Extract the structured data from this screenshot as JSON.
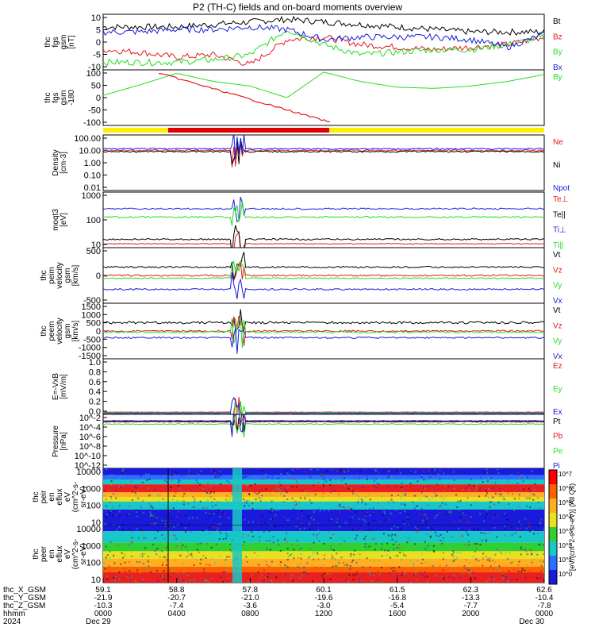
{
  "title": "P2 (TH-C) fields and on-board moments overview",
  "colors": {
    "black": "#000000",
    "red": "#e41a1c",
    "green": "#22dd22",
    "blue": "#1a1adc",
    "yellow": "#ffee00",
    "barred": "#e00000"
  },
  "colorbar_label": "[eV/(cm^2-s-sr-eV)] (All Qs)",
  "colorbar_ticks": [
    "10^7",
    "10^6",
    "10^5",
    "10^4",
    "10^3",
    "10^2",
    "10^1",
    "10^0"
  ],
  "x_labels": {
    "rows": [
      {
        "name": "thc_X_GSM",
        "values": [
          "59.1",
          "58.8",
          "57.8",
          "60.1",
          "61.5",
          "62.3",
          "62.6"
        ]
      },
      {
        "name": "thc_Y_GSM",
        "values": [
          "-21.9",
          "-20.7",
          "-21.0",
          "-19.6",
          "-16.8",
          "-13.3",
          "-10.4"
        ]
      },
      {
        "name": "thc_Z_GSM",
        "values": [
          "-10.3",
          "-7.4",
          "-3.6",
          "-3.0",
          "-5.4",
          "-7.7",
          "-7.8"
        ]
      },
      {
        "name": "hhmm",
        "values": [
          "0000",
          "0400",
          "0800",
          "1200",
          "1600",
          "2000",
          "0000"
        ]
      },
      {
        "name": "2024",
        "values": [
          "Dec 29",
          "",
          "",
          "",
          "",
          "",
          "Dec 30"
        ]
      }
    ]
  },
  "chart_data": [
    {
      "type": "line",
      "ylabel_lines": [
        "thc",
        "fgs",
        "gsm",
        "[nT]"
      ],
      "yticks": [
        "10",
        "5",
        "0",
        "-5",
        "-10"
      ],
      "ylim": [
        -10,
        12
      ],
      "series": [
        {
          "name": "Bt",
          "color": "black",
          "values": [
            7,
            7,
            7,
            8,
            9,
            10,
            9,
            8,
            7,
            6,
            5,
            5,
            5
          ]
        },
        {
          "name": "Bz",
          "color": "red",
          "values": [
            -2,
            -3,
            -5,
            -4,
            -8,
            2,
            3,
            0,
            -1,
            -2,
            -1,
            0,
            3
          ]
        },
        {
          "name": "By",
          "color": "green",
          "values": [
            -7,
            -7,
            -7,
            -6,
            -4,
            6,
            0,
            -4,
            -3,
            -2,
            -2,
            0,
            3
          ]
        },
        {
          "name": "Bx",
          "color": "blue",
          "values": [
            5,
            5,
            6,
            6,
            7,
            6,
            2,
            3,
            3,
            3,
            2,
            -1,
            4
          ]
        }
      ]
    },
    {
      "type": "line",
      "ylabel_lines": [
        "thc",
        "fgs",
        "gsm",
        "-180"
      ],
      "ylabel2": "[nT]",
      "yticks": [
        "100",
        "50",
        "0",
        "-50",
        "-100"
      ],
      "ylim": [
        -130,
        110
      ],
      "series": [
        {
          "name": "By",
          "color": "green",
          "values": [
            0,
            45,
            95,
            60,
            40,
            -10,
            100,
            60,
            35,
            30,
            40,
            60,
            90
          ]
        }
      ]
    },
    {
      "type": "line",
      "ylabel_lines": [
        "Density",
        "[cm-3]"
      ],
      "yticks": [
        "100.00",
        "10.00",
        "1.00",
        "0.10",
        "0.01"
      ],
      "series": [
        {
          "name": "Ne",
          "color": "red"
        },
        {
          "name": "Ni",
          "color": "black"
        },
        {
          "name": "Npot",
          "color": "blue"
        }
      ]
    },
    {
      "type": "line",
      "ylabel_lines": [
        "moqt3",
        "[eV]"
      ],
      "yticks": [
        "1000",
        "100",
        "10"
      ],
      "series": [
        {
          "name": "Te⊥",
          "color": "red"
        },
        {
          "name": "Te||",
          "color": "black"
        },
        {
          "name": "Ti⊥",
          "color": "blue"
        },
        {
          "name": "Ti||",
          "color": "green"
        }
      ]
    },
    {
      "type": "line",
      "ylabel_lines": [
        "thc",
        "peim",
        "velocity",
        "gsm",
        "[km/s]"
      ],
      "yticks": [
        "500",
        "0",
        "-500"
      ],
      "series": [
        {
          "name": "Vt",
          "color": "black"
        },
        {
          "name": "Vz",
          "color": "red"
        },
        {
          "name": "Vy",
          "color": "green"
        },
        {
          "name": "Vx",
          "color": "blue"
        }
      ]
    },
    {
      "type": "line",
      "ylabel_lines": [
        "thc",
        "peem",
        "velocity",
        "gsm",
        "[km/s]"
      ],
      "yticks": [
        "1500",
        "1000",
        "500",
        "0",
        "-500",
        "-1000",
        "-1500"
      ],
      "series": [
        {
          "name": "Vt",
          "color": "black"
        },
        {
          "name": "Vz",
          "color": "red"
        },
        {
          "name": "Vy",
          "color": "green"
        },
        {
          "name": "Vx",
          "color": "blue"
        }
      ]
    },
    {
      "type": "line",
      "ylabel_lines": [
        "E=-VxB",
        "[mV/m]"
      ],
      "yticks": [
        "1.0",
        "0.8",
        "0.6",
        "0.4",
        "0.2",
        "0.0"
      ],
      "series": [
        {
          "name": "Ez",
          "color": "red"
        },
        {
          "name": "Ey",
          "color": "green"
        },
        {
          "name": "Ex",
          "color": "blue"
        }
      ]
    },
    {
      "type": "line",
      "ylabel_lines": [
        "Pressure",
        "[nPa]"
      ],
      "yticks": [
        "10^-2",
        "10^-4",
        "10^-6",
        "10^-8",
        "10^-10",
        "10^-12"
      ],
      "series": [
        {
          "name": "Pt",
          "color": "black"
        },
        {
          "name": "Pb",
          "color": "red"
        },
        {
          "name": "Pe",
          "color": "green"
        },
        {
          "name": "Pi",
          "color": "blue"
        }
      ]
    },
    {
      "type": "heatmap",
      "ylabel_lines": [
        "thc",
        "peir",
        "en",
        "eflux",
        "eV",
        "(cm^2-s-",
        "sr-eV)"
      ],
      "yticks": [
        "10000",
        "1000",
        "100",
        "10"
      ]
    },
    {
      "type": "heatmap",
      "ylabel_lines": [
        "thc",
        "peer",
        "en",
        "eflux",
        "eV",
        "(cm^2-s-",
        "sr-eV)"
      ],
      "yticks": [
        "10000",
        "1000",
        "100",
        "10"
      ]
    }
  ]
}
